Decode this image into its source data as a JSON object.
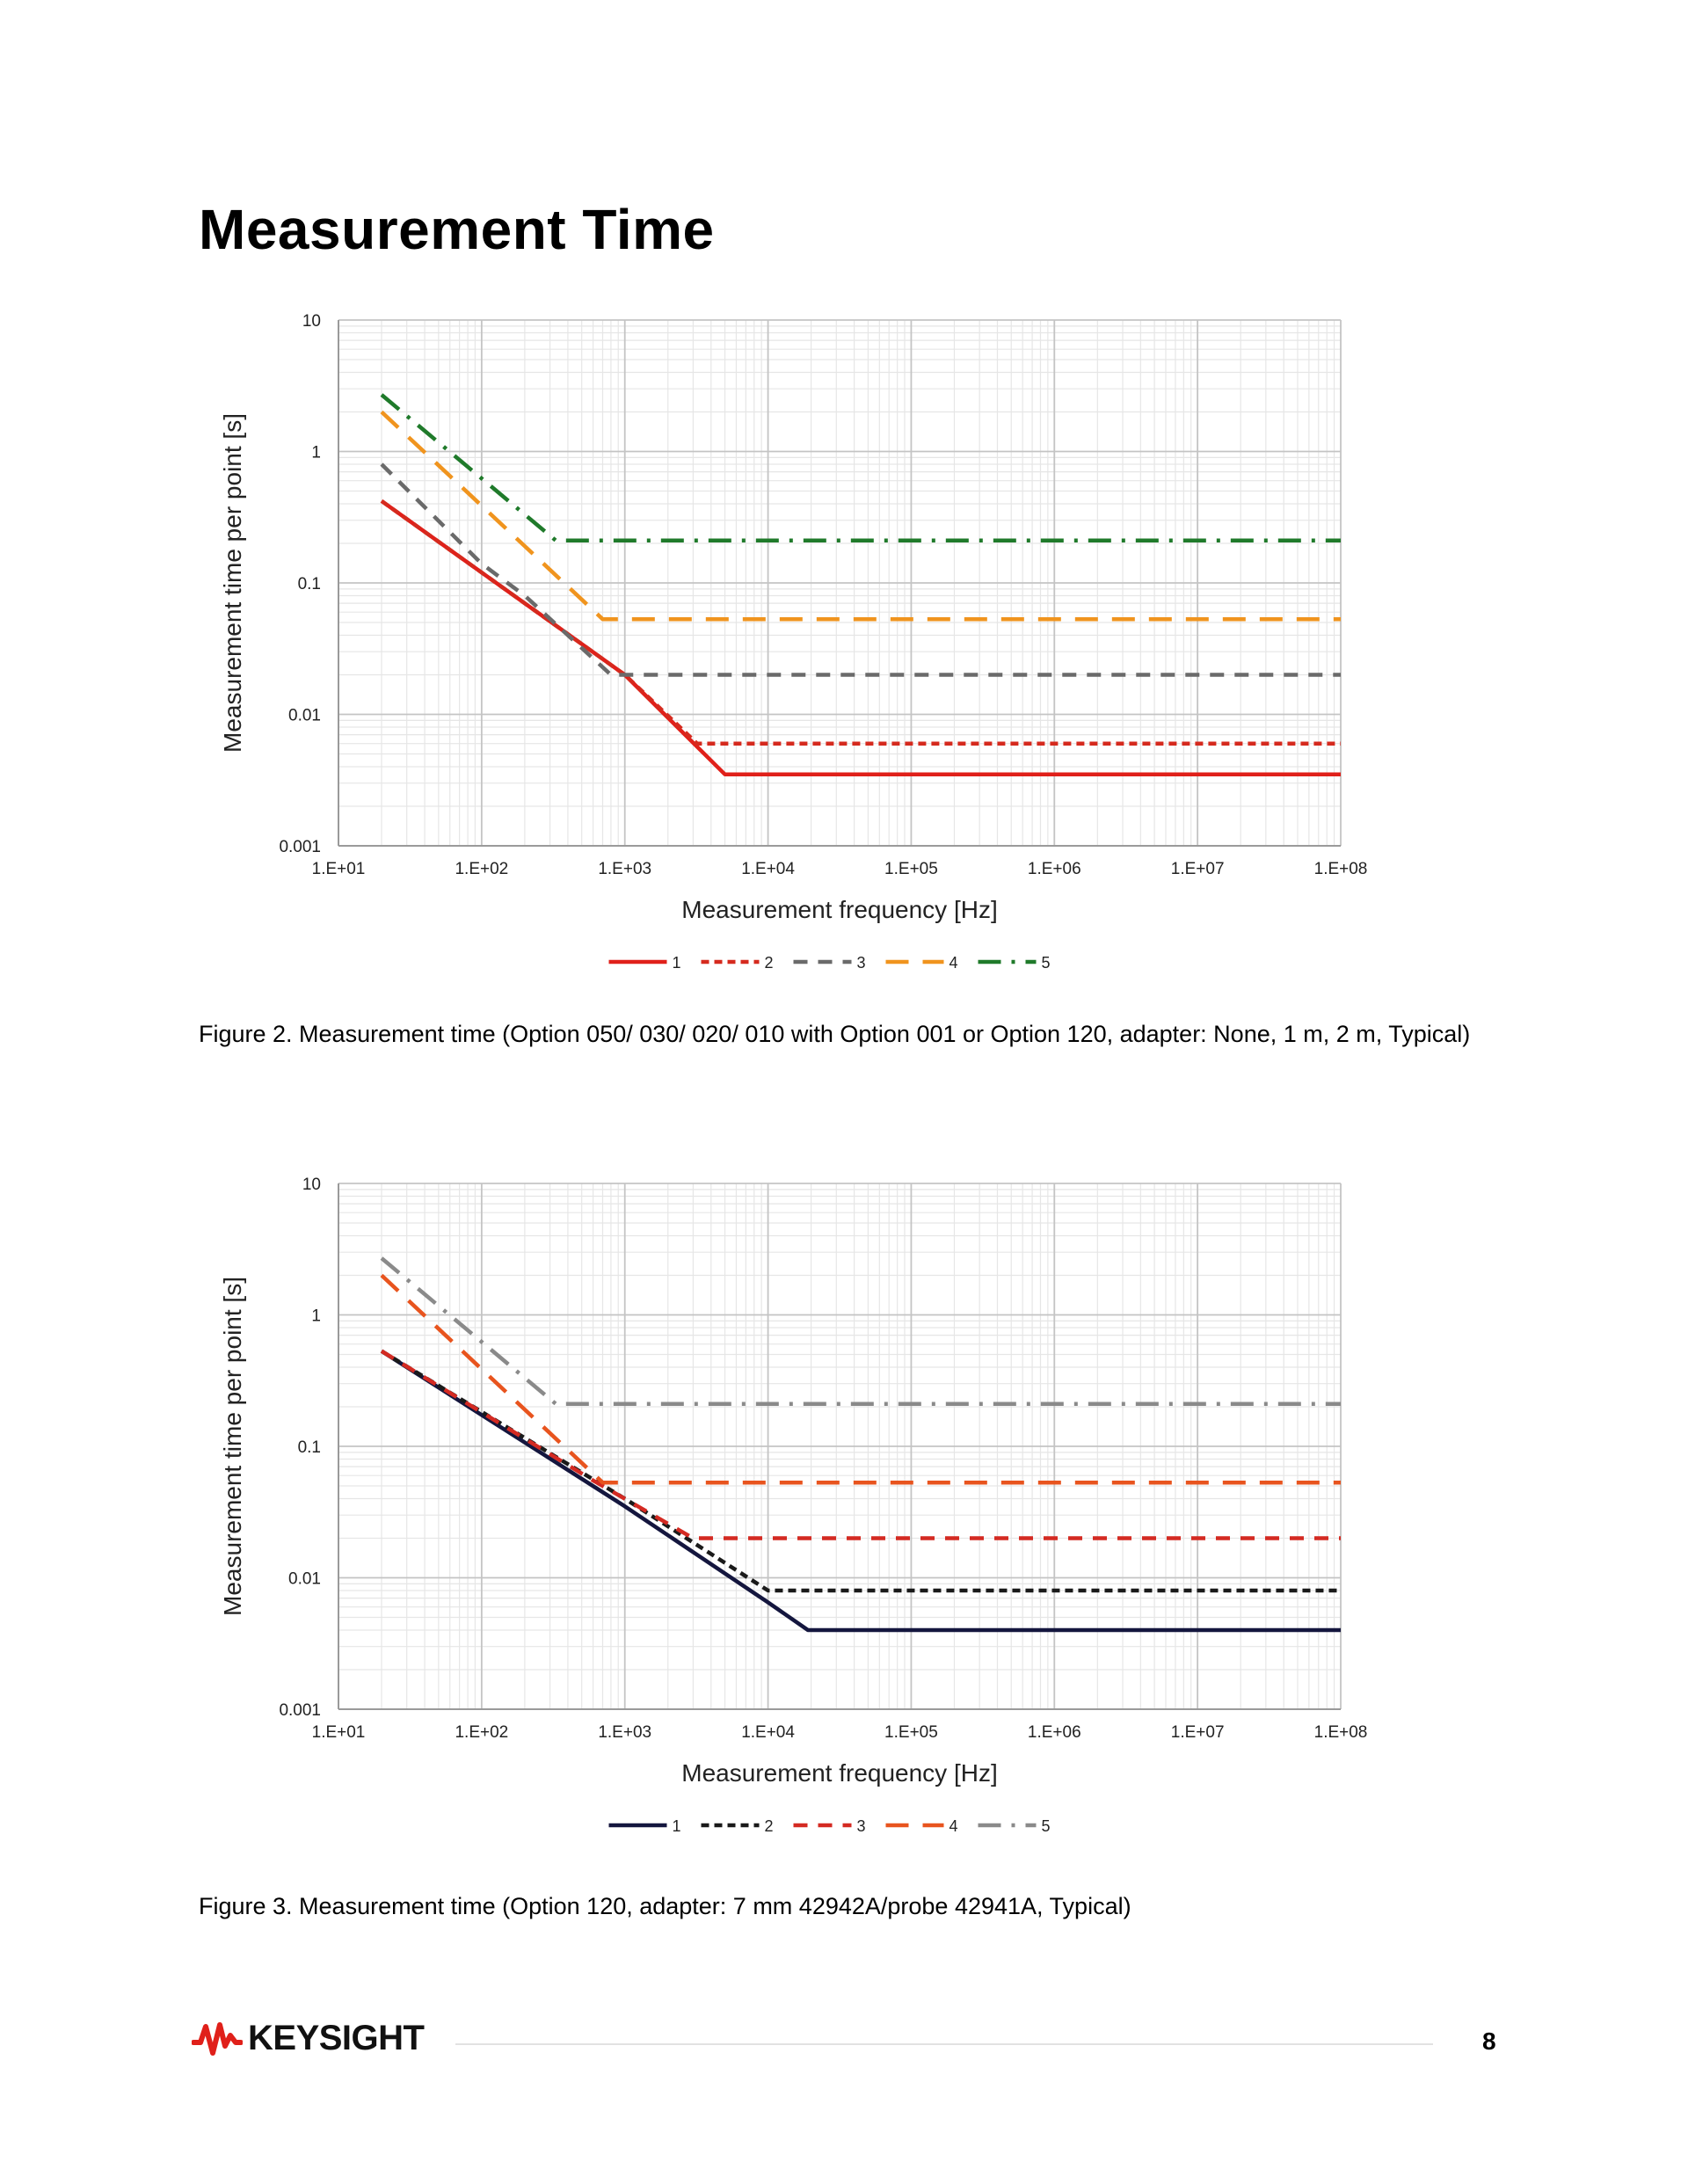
{
  "page": {
    "title": "Measurement Time",
    "page_number": "8",
    "brand": "KEYSIGHT"
  },
  "figures": [
    {
      "caption": "Figure 2. Measurement time (Option 050/ 030/ 020/ 010 with Option 001 or Option 120, adapter: None, 1 m, 2 m, Typical)"
    },
    {
      "caption": "Figure 3. Measurement time (Option 120, adapter: 7 mm 42942A/probe 42941A, Typical)"
    }
  ],
  "chart_data": [
    {
      "type": "line",
      "title": "",
      "xlabel": "Measurement frequency [Hz]",
      "ylabel": "Measurement time per point [s]",
      "x_scale": "log",
      "y_scale": "log",
      "xlim": [
        10,
        100000000
      ],
      "ylim": [
        0.001,
        10
      ],
      "x_ticks": [
        10,
        100,
        1000,
        10000,
        100000,
        1000000,
        10000000,
        100000000
      ],
      "x_tick_labels": [
        "1.E+01",
        "1.E+02",
        "1.E+03",
        "1.E+04",
        "1.E+05",
        "1.E+06",
        "1.E+07",
        "1.E+08"
      ],
      "y_ticks": [
        0.001,
        0.01,
        0.1,
        1,
        10
      ],
      "y_tick_labels": [
        "0.001",
        "0.01",
        "0.1",
        "1",
        "10"
      ],
      "grid": true,
      "legend_position": "bottom",
      "series": [
        {
          "name": "1",
          "color": "#e0201a",
          "dash": "solid",
          "points": [
            [
              20,
              0.42
            ],
            [
              100,
              0.12
            ],
            [
              1000,
              0.02
            ],
            [
              5000,
              0.0035
            ],
            [
              100000000,
              0.0035
            ]
          ]
        },
        {
          "name": "2",
          "color": "#d52a1e",
          "dash": "short-dash",
          "points": [
            [
              20,
              0.42
            ],
            [
              100,
              0.12
            ],
            [
              1000,
              0.02
            ],
            [
              3200,
              0.006
            ],
            [
              100000000,
              0.006
            ]
          ]
        },
        {
          "name": "3",
          "color": "#6a6a6a",
          "dash": "dash",
          "points": [
            [
              20,
              0.8
            ],
            [
              100,
              0.14
            ],
            [
              200,
              0.08
            ],
            [
              800,
              0.02
            ],
            [
              100000000,
              0.02
            ]
          ]
        },
        {
          "name": "4",
          "color": "#f0941e",
          "dash": "long-dash",
          "points": [
            [
              20,
              2.0
            ],
            [
              700,
              0.053
            ],
            [
              100000000,
              0.053
            ]
          ]
        },
        {
          "name": "5",
          "color": "#1f7a2a",
          "dash": "dash-dot",
          "points": [
            [
              20,
              2.7
            ],
            [
              330,
              0.21
            ],
            [
              100000000,
              0.21
            ]
          ]
        }
      ]
    },
    {
      "type": "line",
      "title": "",
      "xlabel": "Measurement frequency [Hz]",
      "ylabel": "Measurement time per point [s]",
      "x_scale": "log",
      "y_scale": "log",
      "xlim": [
        10,
        100000000
      ],
      "ylim": [
        0.001,
        10
      ],
      "x_ticks": [
        10,
        100,
        1000,
        10000,
        100000,
        1000000,
        10000000,
        100000000
      ],
      "x_tick_labels": [
        "1.E+01",
        "1.E+02",
        "1.E+03",
        "1.E+04",
        "1.E+05",
        "1.E+06",
        "1.E+07",
        "1.E+08"
      ],
      "y_ticks": [
        0.001,
        0.01,
        0.1,
        1,
        10
      ],
      "y_tick_labels": [
        "0.001",
        "0.01",
        "0.1",
        "1",
        "10"
      ],
      "grid": true,
      "legend_position": "bottom",
      "series": [
        {
          "name": "1",
          "color": "#14163e",
          "dash": "solid",
          "points": [
            [
              20,
              0.53
            ],
            [
              1000,
              0.035
            ],
            [
              10000,
              0.0065
            ],
            [
              19000,
              0.004
            ],
            [
              100000000,
              0.004
            ]
          ]
        },
        {
          "name": "2",
          "color": "#1a1a1a",
          "dash": "short-dash",
          "points": [
            [
              20,
              0.53
            ],
            [
              1000,
              0.04
            ],
            [
              10000,
              0.008
            ],
            [
              100000000,
              0.008
            ]
          ]
        },
        {
          "name": "3",
          "color": "#d42a22",
          "dash": "dash",
          "points": [
            [
              20,
              0.53
            ],
            [
              600,
              0.055
            ],
            [
              3000,
              0.02
            ],
            [
              100000000,
              0.02
            ]
          ]
        },
        {
          "name": "4",
          "color": "#e8541e",
          "dash": "long-dash",
          "points": [
            [
              20,
              2.0
            ],
            [
              700,
              0.053
            ],
            [
              100000000,
              0.053
            ]
          ]
        },
        {
          "name": "5",
          "color": "#8a8a8a",
          "dash": "dash-dot",
          "points": [
            [
              20,
              2.7
            ],
            [
              330,
              0.21
            ],
            [
              100000000,
              0.21
            ]
          ]
        }
      ]
    }
  ]
}
